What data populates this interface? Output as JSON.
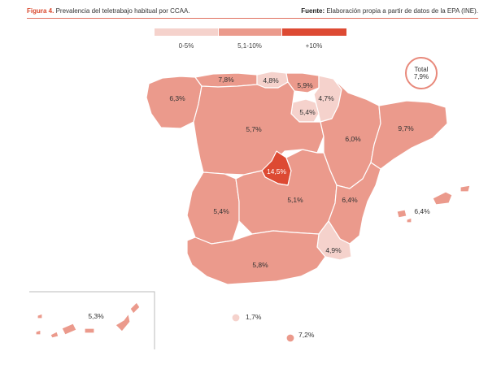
{
  "header": {
    "figure_label": "Figura 4.",
    "title": "Prevalencia del teletrabajo habitual por CCAA.",
    "source_label": "Fuente:",
    "source_text": "Elaboración propia a partir de datos de la EPA (INE)."
  },
  "legend": {
    "items": [
      {
        "label": "0-5%",
        "color": "#f5d2cc"
      },
      {
        "label": "5,1-10%",
        "color": "#eb9a8c"
      },
      {
        "label": "+10%",
        "color": "#dd4a33"
      }
    ]
  },
  "total": {
    "line1": "Total",
    "line2": "7,9%"
  },
  "regions": [
    {
      "name": "Galicia",
      "value": "6,3%"
    },
    {
      "name": "Asturias",
      "value": "7,8%"
    },
    {
      "name": "Cantabria",
      "value": "4,8%"
    },
    {
      "name": "País Vasco",
      "value": "5,9%"
    },
    {
      "name": "Navarra",
      "value": "4,7%"
    },
    {
      "name": "La Rioja",
      "value": "5,4%"
    },
    {
      "name": "Castilla y León",
      "value": "5,7%"
    },
    {
      "name": "Aragón",
      "value": "6,0%"
    },
    {
      "name": "Cataluña",
      "value": "9,7%"
    },
    {
      "name": "Madrid",
      "value": "14,5%"
    },
    {
      "name": "Extremadura",
      "value": "5,4%"
    },
    {
      "name": "Castilla-La Mancha",
      "value": "5,1%"
    },
    {
      "name": "Comunidad Valenciana",
      "value": "6,4%"
    },
    {
      "name": "Islas Baleares",
      "value": "6,4%"
    },
    {
      "name": "Andalucía",
      "value": "5,8%"
    },
    {
      "name": "Región de Murcia",
      "value": "4,9%"
    },
    {
      "name": "Canarias",
      "value": "5,3%"
    },
    {
      "name": "Ceuta",
      "value": "1,7%"
    },
    {
      "name": "Melilla",
      "value": "7,2%"
    }
  ]
}
